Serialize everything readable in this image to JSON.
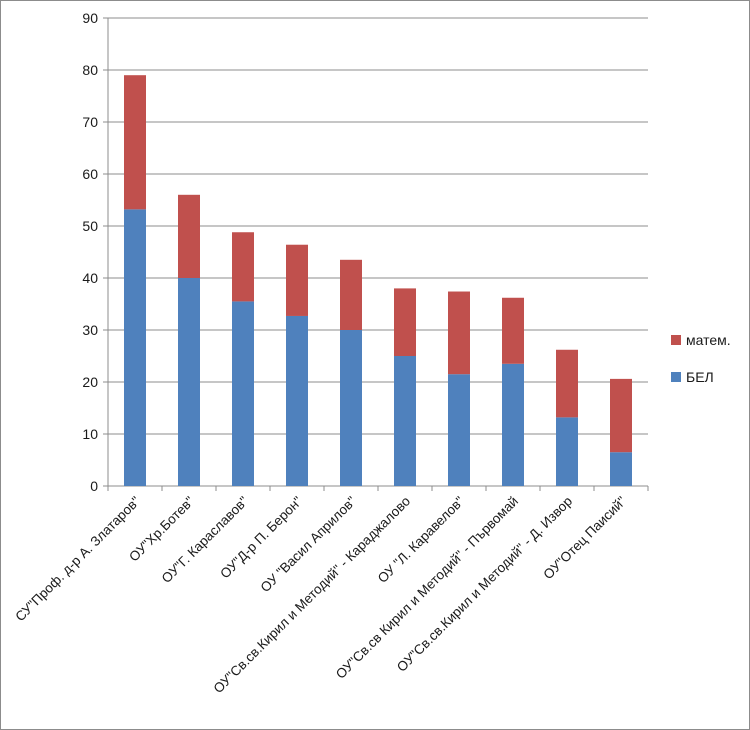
{
  "chart_data": {
    "type": "bar",
    "stacked": true,
    "title": "",
    "xlabel": "",
    "ylabel": "",
    "ylim": [
      0,
      90
    ],
    "yticks": [
      0,
      10,
      20,
      30,
      40,
      50,
      60,
      70,
      80,
      90
    ],
    "grid": true,
    "legend_position": "right",
    "categories": [
      "СУ\"Проф. д-р А. Златаров\"",
      "ОУ\"Хр.Ботев\"",
      "ОУ\"Г. Караславов\"",
      "ОУ\"Д-р П. Берон\"",
      "ОУ  \"Васил Априлов\"",
      "ОУ\"Св.св.Кирил и Методий\" - Караджалово",
      "ОУ  \"Л. Каравелов\"",
      "ОУ\"Св.св Кирил и Методий\"  - Първомай",
      "ОУ\"Св.св.Кирил и Методий\" - Д. Извор",
      "ОУ\"Отец Паисий\""
    ],
    "series": [
      {
        "name": "БЕЛ",
        "color": "#4f81bd",
        "values": [
          53.2,
          40,
          35.5,
          32.7,
          30,
          25,
          21.5,
          23.5,
          13.2,
          6.5
        ]
      },
      {
        "name": "матем.",
        "color": "#c0504d",
        "values": [
          25.8,
          16,
          13.3,
          13.7,
          13.5,
          13,
          15.9,
          12.7,
          13,
          14.1
        ]
      }
    ],
    "legend_order": [
      "матем.",
      "БЕЛ"
    ]
  }
}
